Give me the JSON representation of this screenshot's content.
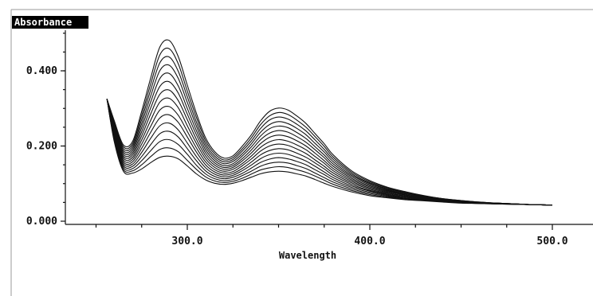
{
  "chart_data": {
    "type": "line",
    "ylabel": "Absorbance",
    "xlabel": "Wavelength",
    "xlim": [
      200.0,
      510.0
    ],
    "ylim": [
      0.0,
      0.52
    ],
    "x_ticks": [
      {
        "value": 300,
        "label": "300.0"
      },
      {
        "value": 400,
        "label": "400.0"
      },
      {
        "value": 500,
        "label": "500.0"
      }
    ],
    "y_ticks": [
      {
        "value": 0.0,
        "label": "0.000"
      },
      {
        "value": 0.2,
        "label": "0.200"
      },
      {
        "value": 0.4,
        "label": "0.400"
      }
    ],
    "x": [
      256,
      260,
      265,
      270,
      275,
      280,
      285,
      290,
      295,
      300,
      305,
      310,
      315,
      320,
      325,
      330,
      335,
      340,
      345,
      350,
      355,
      360,
      365,
      370,
      375,
      380,
      390,
      400,
      410,
      420,
      430,
      440,
      450,
      460,
      470,
      480,
      490,
      500
    ],
    "series": [
      {
        "values": [
          0.325,
          0.211,
          0.133,
          0.128,
          0.139,
          0.156,
          0.17,
          0.173,
          0.166,
          0.147,
          0.126,
          0.11,
          0.101,
          0.098,
          0.101,
          0.108,
          0.117,
          0.126,
          0.131,
          0.133,
          0.131,
          0.126,
          0.12,
          0.111,
          0.101,
          0.092,
          0.078,
          0.068,
          0.062,
          0.057,
          0.054,
          0.051,
          0.048,
          0.047,
          0.046,
          0.045,
          0.044,
          0.043
        ]
      },
      {
        "values": [
          0.325,
          0.215,
          0.138,
          0.134,
          0.15,
          0.172,
          0.191,
          0.195,
          0.185,
          0.162,
          0.138,
          0.118,
          0.107,
          0.103,
          0.106,
          0.114,
          0.125,
          0.136,
          0.142,
          0.145,
          0.143,
          0.137,
          0.13,
          0.12,
          0.109,
          0.098,
          0.082,
          0.071,
          0.064,
          0.058,
          0.055,
          0.052,
          0.049,
          0.047,
          0.046,
          0.045,
          0.044,
          0.043
        ]
      },
      {
        "values": [
          0.325,
          0.219,
          0.143,
          0.14,
          0.161,
          0.188,
          0.212,
          0.217,
          0.204,
          0.178,
          0.149,
          0.126,
          0.113,
          0.108,
          0.111,
          0.121,
          0.133,
          0.146,
          0.154,
          0.157,
          0.155,
          0.148,
          0.14,
          0.128,
          0.116,
          0.104,
          0.086,
          0.074,
          0.066,
          0.06,
          0.056,
          0.052,
          0.049,
          0.048,
          0.046,
          0.045,
          0.044,
          0.043
        ]
      },
      {
        "values": [
          0.325,
          0.223,
          0.148,
          0.146,
          0.172,
          0.204,
          0.233,
          0.239,
          0.224,
          0.193,
          0.161,
          0.134,
          0.119,
          0.113,
          0.117,
          0.127,
          0.141,
          0.156,
          0.165,
          0.169,
          0.166,
          0.159,
          0.15,
          0.137,
          0.124,
          0.11,
          0.09,
          0.077,
          0.068,
          0.061,
          0.057,
          0.053,
          0.05,
          0.048,
          0.046,
          0.045,
          0.044,
          0.043
        ]
      },
      {
        "values": [
          0.325,
          0.227,
          0.153,
          0.152,
          0.183,
          0.221,
          0.254,
          0.261,
          0.243,
          0.208,
          0.172,
          0.142,
          0.125,
          0.118,
          0.122,
          0.134,
          0.149,
          0.166,
          0.177,
          0.181,
          0.178,
          0.17,
          0.16,
          0.146,
          0.131,
          0.116,
          0.094,
          0.08,
          0.07,
          0.063,
          0.058,
          0.054,
          0.05,
          0.048,
          0.046,
          0.045,
          0.044,
          0.043
        ]
      },
      {
        "values": [
          0.325,
          0.231,
          0.158,
          0.158,
          0.194,
          0.237,
          0.275,
          0.283,
          0.263,
          0.224,
          0.184,
          0.15,
          0.131,
          0.123,
          0.127,
          0.14,
          0.157,
          0.176,
          0.188,
          0.193,
          0.19,
          0.181,
          0.17,
          0.155,
          0.139,
          0.122,
          0.098,
          0.082,
          0.072,
          0.064,
          0.059,
          0.054,
          0.051,
          0.048,
          0.047,
          0.045,
          0.044,
          0.043
        ]
      },
      {
        "values": [
          0.325,
          0.235,
          0.163,
          0.164,
          0.205,
          0.253,
          0.296,
          0.305,
          0.282,
          0.239,
          0.195,
          0.158,
          0.137,
          0.128,
          0.132,
          0.147,
          0.165,
          0.186,
          0.2,
          0.205,
          0.202,
          0.192,
          0.18,
          0.163,
          0.146,
          0.128,
          0.102,
          0.085,
          0.074,
          0.066,
          0.06,
          0.055,
          0.051,
          0.049,
          0.047,
          0.045,
          0.044,
          0.043
        ]
      },
      {
        "values": [
          0.325,
          0.239,
          0.168,
          0.17,
          0.216,
          0.269,
          0.317,
          0.327,
          0.302,
          0.254,
          0.207,
          0.166,
          0.143,
          0.133,
          0.138,
          0.153,
          0.173,
          0.196,
          0.211,
          0.217,
          0.213,
          0.203,
          0.19,
          0.172,
          0.154,
          0.134,
          0.106,
          0.088,
          0.076,
          0.067,
          0.061,
          0.056,
          0.052,
          0.049,
          0.047,
          0.045,
          0.044,
          0.043
        ]
      },
      {
        "values": [
          0.325,
          0.243,
          0.173,
          0.176,
          0.227,
          0.286,
          0.338,
          0.349,
          0.321,
          0.27,
          0.218,
          0.174,
          0.149,
          0.138,
          0.143,
          0.16,
          0.181,
          0.206,
          0.223,
          0.229,
          0.225,
          0.214,
          0.2,
          0.181,
          0.161,
          0.14,
          0.11,
          0.091,
          0.078,
          0.069,
          0.062,
          0.056,
          0.052,
          0.049,
          0.047,
          0.045,
          0.044,
          0.043
        ]
      },
      {
        "values": [
          0.325,
          0.247,
          0.178,
          0.182,
          0.238,
          0.302,
          0.359,
          0.371,
          0.341,
          0.285,
          0.23,
          0.182,
          0.155,
          0.143,
          0.148,
          0.166,
          0.189,
          0.216,
          0.234,
          0.241,
          0.237,
          0.225,
          0.21,
          0.19,
          0.169,
          0.146,
          0.114,
          0.094,
          0.08,
          0.07,
          0.063,
          0.057,
          0.053,
          0.05,
          0.047,
          0.046,
          0.044,
          0.043
        ]
      },
      {
        "values": [
          0.325,
          0.251,
          0.183,
          0.188,
          0.249,
          0.318,
          0.38,
          0.393,
          0.36,
          0.3,
          0.241,
          0.19,
          0.161,
          0.148,
          0.153,
          0.173,
          0.197,
          0.226,
          0.246,
          0.253,
          0.249,
          0.236,
          0.22,
          0.198,
          0.176,
          0.152,
          0.118,
          0.097,
          0.082,
          0.072,
          0.064,
          0.058,
          0.053,
          0.05,
          0.048,
          0.046,
          0.044,
          0.043
        ]
      },
      {
        "values": [
          0.325,
          0.255,
          0.188,
          0.194,
          0.26,
          0.334,
          0.401,
          0.415,
          0.38,
          0.316,
          0.253,
          0.198,
          0.167,
          0.153,
          0.159,
          0.179,
          0.205,
          0.236,
          0.257,
          0.265,
          0.26,
          0.247,
          0.23,
          0.207,
          0.184,
          0.158,
          0.122,
          0.1,
          0.084,
          0.073,
          0.065,
          0.058,
          0.054,
          0.05,
          0.048,
          0.046,
          0.044,
          0.043
        ]
      },
      {
        "values": [
          0.325,
          0.259,
          0.193,
          0.2,
          0.271,
          0.35,
          0.422,
          0.437,
          0.399,
          0.331,
          0.264,
          0.206,
          0.173,
          0.158,
          0.164,
          0.186,
          0.213,
          0.246,
          0.269,
          0.277,
          0.272,
          0.258,
          0.24,
          0.216,
          0.191,
          0.164,
          0.126,
          0.102,
          0.086,
          0.075,
          0.066,
          0.059,
          0.054,
          0.05,
          0.048,
          0.046,
          0.044,
          0.043
        ]
      },
      {
        "values": [
          0.325,
          0.263,
          0.198,
          0.206,
          0.282,
          0.366,
          0.443,
          0.459,
          0.419,
          0.346,
          0.276,
          0.214,
          0.179,
          0.163,
          0.169,
          0.192,
          0.221,
          0.256,
          0.28,
          0.289,
          0.284,
          0.269,
          0.25,
          0.225,
          0.199,
          0.17,
          0.13,
          0.105,
          0.088,
          0.076,
          0.067,
          0.06,
          0.055,
          0.051,
          0.048,
          0.046,
          0.044,
          0.043
        ]
      },
      {
        "values": [
          0.325,
          0.267,
          0.203,
          0.212,
          0.293,
          0.382,
          0.464,
          0.481,
          0.438,
          0.362,
          0.287,
          0.222,
          0.185,
          0.168,
          0.174,
          0.199,
          0.229,
          0.266,
          0.292,
          0.301,
          0.296,
          0.28,
          0.26,
          0.233,
          0.206,
          0.176,
          0.134,
          0.108,
          0.09,
          0.078,
          0.068,
          0.06,
          0.055,
          0.051,
          0.048,
          0.046,
          0.044,
          0.043
        ]
      }
    ]
  }
}
